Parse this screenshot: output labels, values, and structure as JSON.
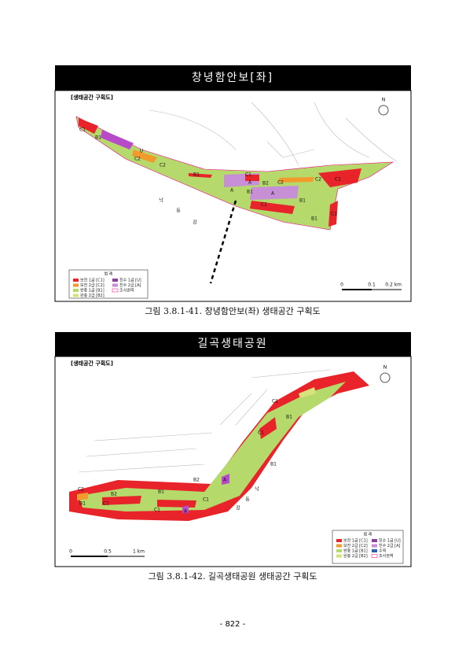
{
  "figures": [
    {
      "title": "창녕함안보[좌]",
      "map_label": "[생태공간 구획도]",
      "north": "N",
      "legend": {
        "title": "범 례",
        "items": [
          "보전 1급 [C1]",
          "보전 2급 [C2]",
          "완충 1급 [B1]",
          "완충 2급 [B2]",
          "친수 1급 [U]",
          "친수 2급 [A]",
          "조사권역"
        ]
      },
      "scale": [
        "0",
        "0.1",
        "0.2 km"
      ],
      "zones": [
        "C1",
        "B1",
        "U",
        "C2",
        "C2",
        "B1",
        "C1",
        "A",
        "B2",
        "C2",
        "C2",
        "C1",
        "A",
        "B1",
        "A",
        "B1",
        "C1",
        "B1",
        "C1",
        "낙",
        "동",
        "강"
      ],
      "caption": "그림 3.8.1-41. 창녕함안보(좌) 생태공간 구획도"
    },
    {
      "title": "길곡생태공원",
      "map_label": "[생태공간 구획도]",
      "north": "N",
      "legend": {
        "title": "범 례",
        "items": [
          "보전 1급 [C1]",
          "보전 2급 [C2]",
          "완충 1급 [B1]",
          "완충 2급 [B2]",
          "친수 1급 [U]",
          "친수 2급 [A]",
          "수역",
          "조사권역"
        ]
      },
      "scale": [
        "0",
        "0.5",
        "1 km"
      ],
      "zones": [
        "C1",
        "B1",
        "C1",
        "B1",
        "B2",
        "B1",
        "C1",
        "C1",
        "B2",
        "B1",
        "C1",
        "A",
        "A",
        "C2",
        "낙",
        "동",
        "강"
      ],
      "caption": "그림 3.8.1-42. 길곡생태공원 생태공간 구획도"
    }
  ],
  "page_number": "- 822 -"
}
